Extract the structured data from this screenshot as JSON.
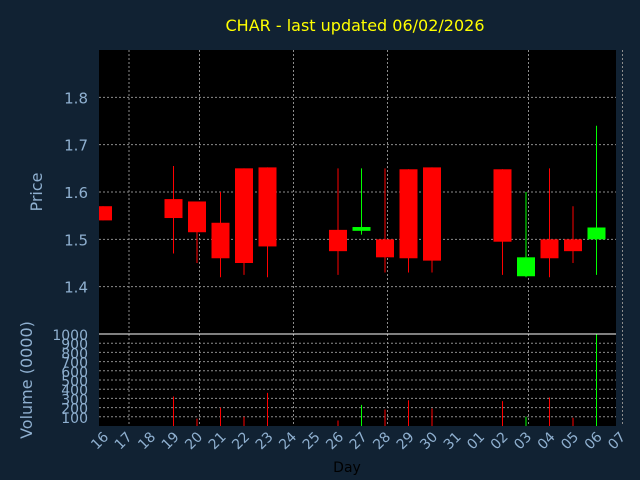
{
  "title": "CHAR - last updated 06/02/2026",
  "colors": {
    "background": "#112233",
    "plot": "#000000",
    "grid": "#8c8c8c",
    "up": "#00ff00",
    "down": "#ff0000",
    "title": "#ffff00",
    "axis_text": "#8fb0d0"
  },
  "chart_data": [
    {
      "type": "candlestick",
      "ylabel": "Price",
      "xlabel": "Day",
      "ylim": [
        1.3,
        1.9
      ],
      "yticks": [
        1.4,
        1.5,
        1.6,
        1.7,
        1.8
      ],
      "grid": true,
      "x_tick_labels": [
        "16",
        "17",
        "18",
        "19",
        "20",
        "21",
        "22",
        "23",
        "24",
        "25",
        "26",
        "27",
        "28",
        "29",
        "30",
        "31",
        "01",
        "02",
        "03",
        "04",
        "05",
        "06",
        "07"
      ],
      "candles": [
        {
          "x": "16",
          "open": 1.57,
          "high": 1.57,
          "low": 1.54,
          "close": 1.54
        },
        {
          "x": "19",
          "open": 1.585,
          "high": 1.655,
          "low": 1.47,
          "close": 1.545
        },
        {
          "x": "20",
          "open": 1.58,
          "high": 1.58,
          "low": 1.45,
          "close": 1.515
        },
        {
          "x": "21",
          "open": 1.535,
          "high": 1.6,
          "low": 1.42,
          "close": 1.46
        },
        {
          "x": "22",
          "open": 1.65,
          "high": 1.65,
          "low": 1.425,
          "close": 1.45
        },
        {
          "x": "23",
          "open": 1.652,
          "high": 1.652,
          "low": 1.42,
          "close": 1.485
        },
        {
          "x": "26",
          "open": 1.52,
          "high": 1.65,
          "low": 1.425,
          "close": 1.475
        },
        {
          "x": "27",
          "open": 1.518,
          "high": 1.65,
          "low": 1.51,
          "close": 1.526
        },
        {
          "x": "28",
          "open": 1.5,
          "high": 1.65,
          "low": 1.43,
          "close": 1.462
        },
        {
          "x": "29",
          "open": 1.648,
          "high": 1.648,
          "low": 1.43,
          "close": 1.46
        },
        {
          "x": "30",
          "open": 1.652,
          "high": 1.652,
          "low": 1.43,
          "close": 1.455
        },
        {
          "x": "02",
          "open": 1.648,
          "high": 1.648,
          "low": 1.425,
          "close": 1.495
        },
        {
          "x": "03",
          "open": 1.422,
          "high": 1.6,
          "low": 1.42,
          "close": 1.462
        },
        {
          "x": "04",
          "open": 1.5,
          "high": 1.65,
          "low": 1.42,
          "close": 1.46
        },
        {
          "x": "05",
          "open": 1.5,
          "high": 1.57,
          "low": 1.45,
          "close": 1.475
        },
        {
          "x": "06",
          "open": 1.5,
          "high": 1.74,
          "low": 1.425,
          "close": 1.525
        }
      ]
    },
    {
      "type": "bar",
      "ylabel": "Volume (0000)",
      "xlabel": "Day",
      "ylim": [
        0,
        1000
      ],
      "yticks": [
        100,
        200,
        300,
        400,
        500,
        600,
        700,
        800,
        900,
        1000
      ],
      "grid": true,
      "bars": [
        {
          "x": "19",
          "value": 320,
          "dir": "down"
        },
        {
          "x": "20",
          "value": 80,
          "dir": "down"
        },
        {
          "x": "21",
          "value": 200,
          "dir": "down"
        },
        {
          "x": "22",
          "value": 100,
          "dir": "down"
        },
        {
          "x": "23",
          "value": 360,
          "dir": "down"
        },
        {
          "x": "26",
          "value": 60,
          "dir": "down"
        },
        {
          "x": "27",
          "value": 230,
          "dir": "up"
        },
        {
          "x": "28",
          "value": 180,
          "dir": "down"
        },
        {
          "x": "29",
          "value": 280,
          "dir": "down"
        },
        {
          "x": "30",
          "value": 190,
          "dir": "down"
        },
        {
          "x": "02",
          "value": 270,
          "dir": "down"
        },
        {
          "x": "03",
          "value": 100,
          "dir": "up"
        },
        {
          "x": "04",
          "value": 310,
          "dir": "down"
        },
        {
          "x": "05",
          "value": 90,
          "dir": "down"
        },
        {
          "x": "06",
          "value": 1000,
          "dir": "up"
        }
      ]
    }
  ]
}
